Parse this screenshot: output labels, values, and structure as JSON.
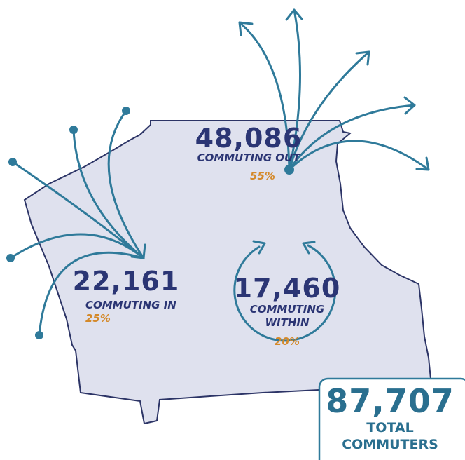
{
  "flows": [
    {
      "value": "48,086",
      "label": [
        "COMMUTING OUT"
      ],
      "percent": "55%"
    },
    {
      "value": "22,161",
      "label": [
        "COMMUTING IN"
      ],
      "percent": "25%"
    },
    {
      "value": "17,460",
      "label": [
        "COMMUTING",
        "WITHIN"
      ],
      "percent": "20%"
    }
  ],
  "total": {
    "value": "87,707",
    "label": [
      "TOTAL",
      "COMMUTERS"
    ]
  }
}
